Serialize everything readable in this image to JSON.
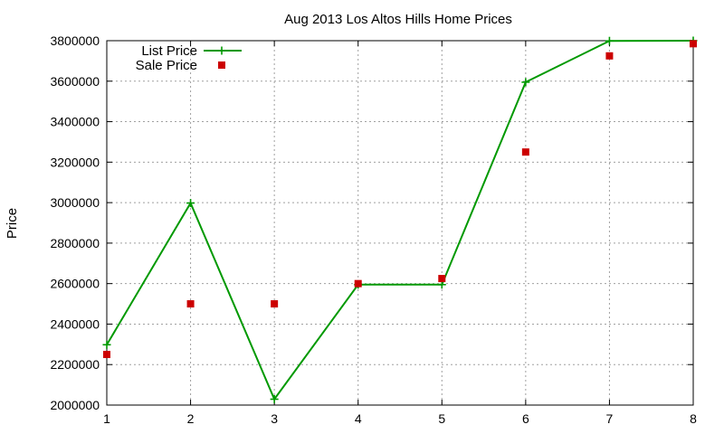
{
  "chart_data": {
    "type": "line",
    "title": "Aug 2013 Los Altos Hills Home Prices",
    "xlabel": "",
    "ylabel": "Price",
    "x": [
      1,
      2,
      3,
      4,
      5,
      6,
      7,
      8
    ],
    "xlim": [
      1,
      8
    ],
    "ylim": [
      2000000,
      3800000
    ],
    "xticks": [
      "1",
      "2",
      "3",
      "4",
      "5",
      "6",
      "7",
      "8"
    ],
    "yticks": [
      "2000000",
      "2200000",
      "2400000",
      "2600000",
      "2800000",
      "3000000",
      "3200000",
      "3400000",
      "3600000",
      "3800000"
    ],
    "grid": true,
    "legend_position": "top-left",
    "series": [
      {
        "name": "List Price",
        "style": "linespoints",
        "marker": "plus",
        "color": "#009900",
        "values": [
          2298000,
          2998000,
          2029000,
          2595000,
          2595000,
          3595000,
          3799000,
          3800000
        ]
      },
      {
        "name": "Sale Price",
        "style": "points",
        "marker": "square",
        "color": "#cc0000",
        "values": [
          2250000,
          2500000,
          2500000,
          2600000,
          2625000,
          3250000,
          3725000,
          3785000
        ]
      }
    ]
  }
}
